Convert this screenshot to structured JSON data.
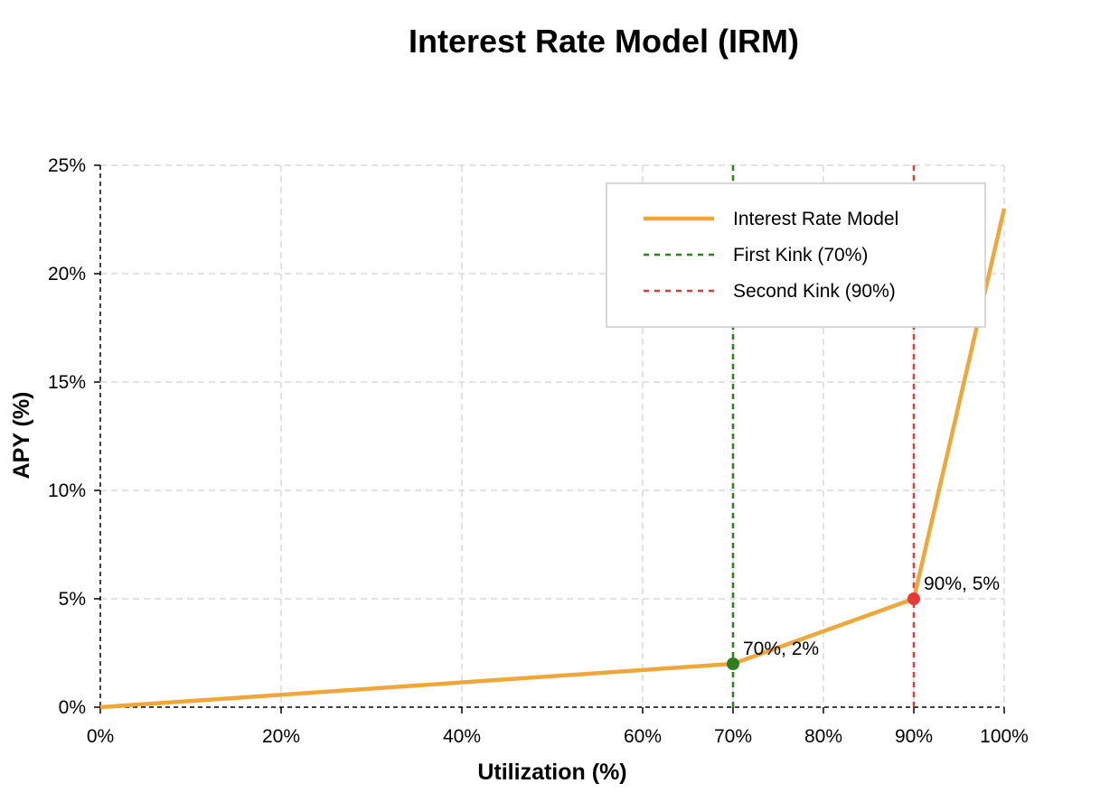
{
  "chart_data": {
    "type": "line",
    "title": "Interest Rate Model (IRM)",
    "xlabel": "Utilization (%)",
    "ylabel": "APY (%)",
    "xlim": [
      0,
      100
    ],
    "ylim": [
      0,
      25
    ],
    "x_ticks": [
      0,
      20,
      40,
      60,
      70,
      80,
      90,
      100
    ],
    "x_tick_labels": [
      "0%",
      "20%",
      "40%",
      "60%",
      "70%",
      "80%",
      "90%",
      "100%"
    ],
    "y_ticks": [
      0,
      5,
      10,
      15,
      20,
      25
    ],
    "y_tick_labels": [
      "0%",
      "5%",
      "10%",
      "15%",
      "20%",
      "25%"
    ],
    "grid": true,
    "legend_position": "top-right",
    "series": [
      {
        "name": "Interest Rate Model",
        "color": "#f0a73a",
        "style": "solid",
        "x": [
          0,
          70,
          90,
          100
        ],
        "y": [
          0,
          2,
          5,
          23
        ]
      }
    ],
    "vlines": [
      {
        "name": "First Kink (70%)",
        "x": 70,
        "color": "#2e7d1f",
        "style": "dashed"
      },
      {
        "name": "Second Kink (90%)",
        "x": 90,
        "color": "#e53935",
        "style": "dashed"
      }
    ],
    "points": [
      {
        "x": 70,
        "y": 2,
        "label": "70%, 2%",
        "color": "#2e7d1f"
      },
      {
        "x": 90,
        "y": 5,
        "label": "90%, 5%",
        "color": "#e53935"
      }
    ]
  }
}
